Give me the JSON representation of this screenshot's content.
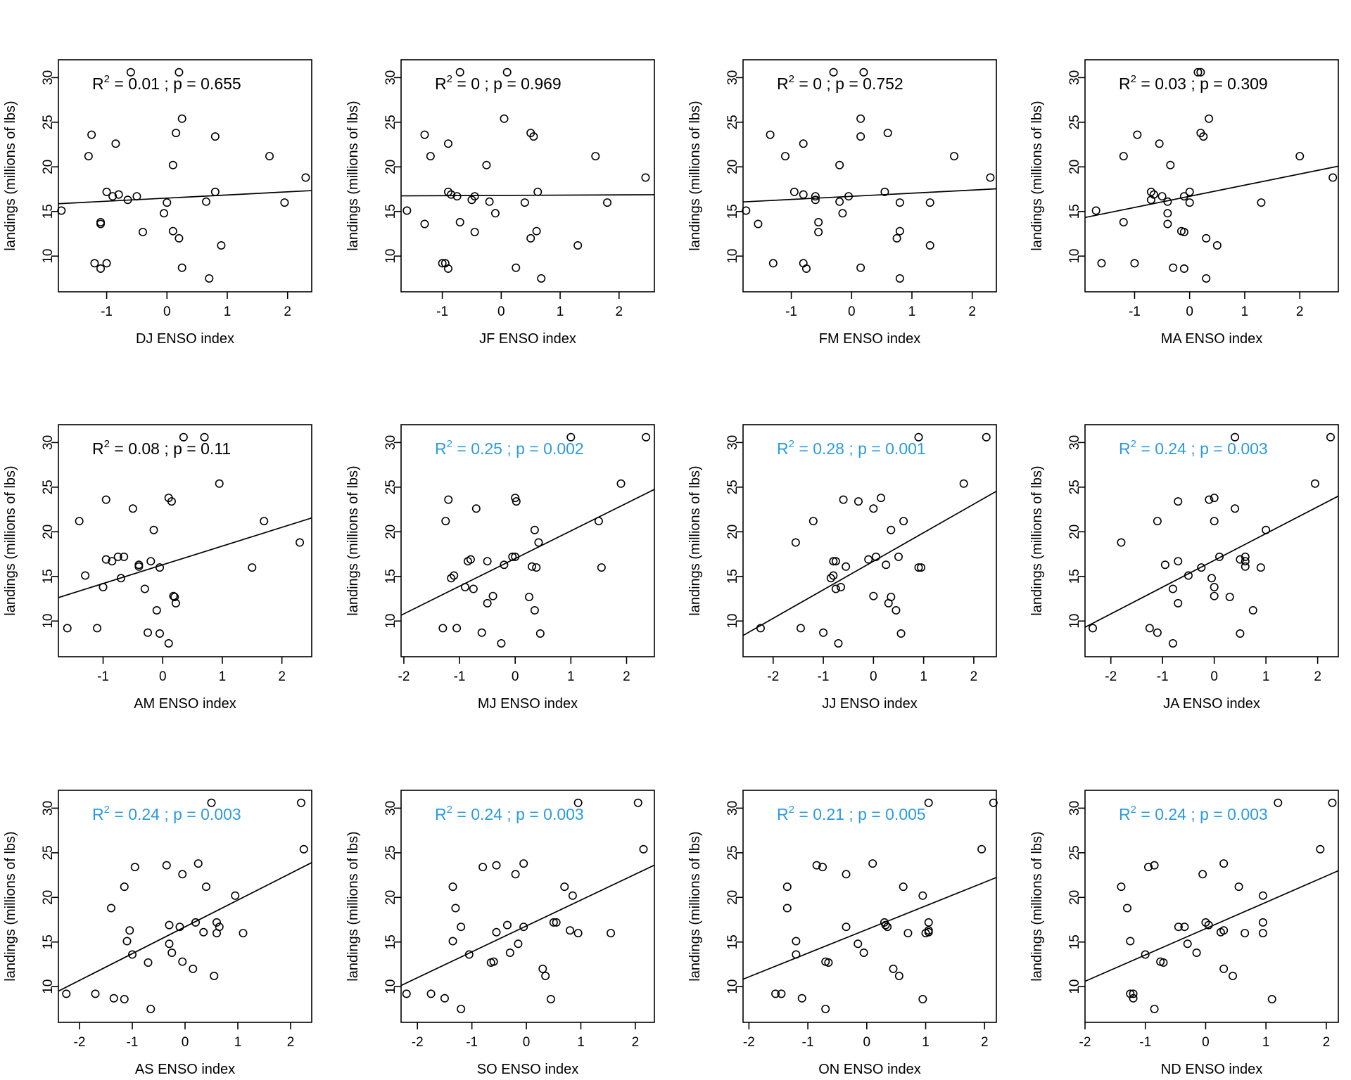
{
  "figure": {
    "ylabel": "landings (millions of lbs)"
  },
  "colors": {
    "significant": "#2b9be0",
    "nonsignificant": "#000000"
  },
  "landings": [
    30.6,
    30.6,
    25.4,
    23.6,
    23.4,
    23.8,
    22.6,
    21.2,
    21.2,
    20.2,
    18.8,
    17.2,
    17.2,
    16.9,
    16.7,
    16.7,
    16.3,
    16.1,
    16.0,
    16.0,
    15.1,
    14.8,
    13.6,
    13.8,
    12.7,
    12.8,
    12.0,
    11.2,
    9.2,
    9.2,
    8.7,
    8.6,
    7.5
  ],
  "chart_data": [
    {
      "type": "scatter",
      "title": "",
      "xlabel": "DJ ENSO index",
      "ylabel": "landings (millions of lbs)",
      "xlim": [
        -1.8,
        2.4
      ],
      "ylim": [
        6,
        32
      ],
      "xticks": [
        -1,
        0,
        1,
        2
      ],
      "yticks": [
        10,
        15,
        20,
        25,
        30
      ],
      "r2": "0.01",
      "p": "0.655",
      "significant": false,
      "fit": [
        16.5,
        0.35
      ],
      "x": [
        -0.6,
        0.2,
        0.25,
        -1.25,
        0.8,
        0.15,
        -0.85,
        -1.3,
        1.7,
        0.1,
        2.3,
        -1.0,
        0.8,
        -0.8,
        -0.9,
        -0.5,
        -0.65,
        0.65,
        0.0,
        1.95,
        -1.75,
        -0.05,
        -1.1,
        -1.1,
        -0.4,
        0.1,
        0.2,
        0.9,
        -1.2,
        -1.0,
        0.25,
        -1.1,
        0.7
      ]
    },
    {
      "type": "scatter",
      "title": "",
      "xlabel": "JF ENSO index",
      "ylabel": "landings (millions of lbs)",
      "xlim": [
        -1.7,
        2.6
      ],
      "ylim": [
        6,
        32
      ],
      "xticks": [
        -1,
        0,
        1,
        2
      ],
      "yticks": [
        10,
        15,
        20,
        25,
        30
      ],
      "r2": "0",
      "p": "0.969",
      "significant": false,
      "fit": [
        16.8,
        0.03
      ],
      "x": [
        -0.7,
        0.1,
        0.05,
        -1.3,
        0.55,
        0.5,
        -0.9,
        -1.2,
        1.6,
        -0.25,
        2.45,
        0.62,
        -0.9,
        -0.85,
        -0.75,
        -0.45,
        -0.5,
        -0.2,
        0.4,
        1.8,
        -1.6,
        -0.1,
        -1.3,
        -0.7,
        -0.45,
        0.6,
        0.5,
        1.3,
        -1.0,
        -0.95,
        0.25,
        -0.9,
        0.68
      ]
    },
    {
      "type": "scatter",
      "title": "",
      "xlabel": "FM ENSO index",
      "ylabel": "landings (millions of lbs)",
      "xlim": [
        -1.8,
        2.4
      ],
      "ylim": [
        6,
        32
      ],
      "xticks": [
        -1,
        0,
        1,
        2
      ],
      "yticks": [
        10,
        15,
        20,
        25,
        30
      ],
      "r2": "0",
      "p": "0.752",
      "significant": false,
      "fit": [
        16.7,
        0.35
      ],
      "x": [
        -0.3,
        0.2,
        0.15,
        -1.35,
        0.15,
        0.6,
        -0.8,
        -1.1,
        1.7,
        -0.2,
        2.3,
        -0.95,
        0.55,
        -0.8,
        -0.6,
        -0.05,
        -0.6,
        -0.2,
        0.8,
        1.3,
        -1.75,
        -0.15,
        -1.55,
        -0.55,
        -0.55,
        0.8,
        0.75,
        1.3,
        -1.3,
        -0.8,
        0.15,
        -0.75,
        0.8
      ]
    },
    {
      "type": "scatter",
      "title": "",
      "xlabel": "MA ENSO index",
      "ylabel": "landings (millions of lbs)",
      "xlim": [
        -1.9,
        2.7
      ],
      "ylim": [
        6,
        32
      ],
      "xticks": [
        -1,
        0,
        1,
        2
      ],
      "yticks": [
        10,
        15,
        20,
        25,
        30
      ],
      "r2": "0.03",
      "p": "0.309",
      "significant": false,
      "fit": [
        16.7,
        1.25
      ],
      "x": [
        0.15,
        0.2,
        0.35,
        -0.95,
        0.25,
        0.2,
        -0.55,
        -1.2,
        2.0,
        -0.35,
        2.6,
        -0.7,
        0.0,
        -0.65,
        -0.1,
        -0.5,
        -0.7,
        -0.4,
        0.0,
        1.3,
        -1.7,
        -0.4,
        -0.4,
        -1.2,
        -0.1,
        -0.15,
        0.3,
        0.5,
        -1.6,
        -1.0,
        -0.3,
        -0.1,
        0.3
      ]
    },
    {
      "type": "scatter",
      "title": "",
      "xlabel": "AM ENSO index",
      "ylabel": "landings (millions of lbs)",
      "xlim": [
        -1.75,
        2.5
      ],
      "ylim": [
        6,
        32
      ],
      "xticks": [
        -1,
        0,
        1,
        2
      ],
      "yticks": [
        10,
        15,
        20,
        25,
        30
      ],
      "r2": "0.08",
      "p": "0.11",
      "significant": false,
      "fit": [
        16.3,
        2.1
      ],
      "x": [
        0.35,
        0.7,
        0.95,
        -0.95,
        0.15,
        0.1,
        -0.5,
        -1.4,
        1.7,
        -0.15,
        2.3,
        -0.75,
        -0.65,
        -0.95,
        -0.85,
        -0.2,
        -0.4,
        -0.4,
        -0.05,
        1.5,
        -1.3,
        -0.7,
        -0.3,
        -1.0,
        0.2,
        0.18,
        0.22,
        -0.1,
        -1.6,
        -1.1,
        -0.25,
        -0.05,
        0.1
      ]
    },
    {
      "type": "scatter",
      "title": "",
      "xlabel": "MJ ENSO index",
      "ylabel": "landings (millions of lbs)",
      "xlim": [
        -2.05,
        2.5
      ],
      "ylim": [
        6,
        32
      ],
      "xticks": [
        -2,
        -1,
        0,
        1,
        2
      ],
      "yticks": [
        10,
        15,
        20,
        25,
        30
      ],
      "r2": "0.25",
      "p": "0.002",
      "significant": true,
      "fit": [
        17.0,
        3.1
      ],
      "x": [
        1.0,
        2.35,
        1.9,
        -1.2,
        0.02,
        0.0,
        -0.7,
        -1.25,
        1.5,
        0.35,
        0.42,
        -0.05,
        0.0,
        -0.8,
        -0.85,
        -0.5,
        -0.2,
        0.3,
        0.38,
        1.55,
        -1.1,
        -1.15,
        -0.75,
        -0.9,
        0.25,
        -0.4,
        -0.5,
        0.35,
        -1.3,
        -1.05,
        -0.6,
        0.45,
        -0.25
      ]
    },
    {
      "type": "scatter",
      "title": "",
      "xlabel": "JJ ENSO index",
      "ylabel": "landings (millions of lbs)",
      "xlim": [
        -2.6,
        2.45
      ],
      "ylim": [
        6,
        32
      ],
      "xticks": [
        -2,
        -1,
        0,
        1,
        2
      ],
      "yticks": [
        10,
        15,
        20,
        25,
        30
      ],
      "r2": "0.28",
      "p": "0.001",
      "significant": true,
      "fit": [
        16.7,
        3.2
      ],
      "x": [
        0.9,
        2.25,
        1.8,
        -0.6,
        -0.3,
        0.15,
        0.0,
        -1.2,
        0.6,
        0.35,
        -1.55,
        0.05,
        0.5,
        -0.1,
        -0.75,
        -0.8,
        0.25,
        -0.55,
        0.95,
        0.9,
        -0.8,
        -0.85,
        -0.75,
        -0.65,
        0.35,
        0.0,
        0.3,
        0.45,
        -2.25,
        -1.45,
        -1.0,
        0.55,
        -0.7
      ]
    },
    {
      "type": "scatter",
      "title": "",
      "xlabel": "JA ENSO index",
      "ylabel": "landings (millions of lbs)",
      "xlim": [
        -2.5,
        2.4
      ],
      "ylim": [
        6,
        32
      ],
      "xticks": [
        -2,
        -1,
        0,
        1,
        2
      ],
      "yticks": [
        10,
        15,
        20,
        25,
        30
      ],
      "r2": "0.24",
      "p": "0.003",
      "significant": true,
      "fit": [
        16.8,
        3.0
      ],
      "x": [
        0.4,
        2.25,
        1.95,
        -0.1,
        -0.7,
        0.0,
        0.4,
        -1.1,
        0.0,
        1.0,
        -1.8,
        0.1,
        0.6,
        0.5,
        -0.7,
        0.6,
        -0.95,
        0.6,
        0.9,
        -0.25,
        -0.5,
        -0.05,
        -0.8,
        0.0,
        0.3,
        0.0,
        -0.7,
        0.75,
        -2.35,
        -1.25,
        -1.1,
        0.5,
        -0.8
      ]
    },
    {
      "type": "scatter",
      "title": "",
      "xlabel": "AS ENSO index",
      "ylabel": "landings (millions of lbs)",
      "xlim": [
        -2.4,
        2.4
      ],
      "ylim": [
        6,
        32
      ],
      "xticks": [
        -2,
        -1,
        0,
        1,
        2
      ],
      "yticks": [
        10,
        15,
        20,
        25,
        30
      ],
      "r2": "0.24",
      "p": "0.003",
      "significant": true,
      "fit": [
        16.7,
        3.0
      ],
      "x": [
        0.5,
        2.2,
        2.25,
        -0.35,
        -0.95,
        0.25,
        -0.05,
        -1.15,
        0.4,
        0.95,
        -1.4,
        0.2,
        0.6,
        -0.3,
        -0.1,
        0.65,
        -1.05,
        0.35,
        0.6,
        1.1,
        -1.1,
        -0.3,
        -1.0,
        -0.25,
        -0.7,
        -0.05,
        0.15,
        0.55,
        -2.25,
        -1.7,
        -1.35,
        -1.15,
        -0.65
      ]
    },
    {
      "type": "scatter",
      "title": "",
      "xlabel": "SO ENSO index",
      "ylabel": "landings (millions of lbs)",
      "xlim": [
        -2.3,
        2.35
      ],
      "ylim": [
        6,
        32
      ],
      "xticks": [
        -2,
        -1,
        0,
        1,
        2
      ],
      "yticks": [
        10,
        15,
        20,
        25,
        30
      ],
      "r2": "0.24",
      "p": "0.003",
      "significant": true,
      "fit": [
        16.8,
        2.9
      ],
      "x": [
        0.95,
        2.05,
        2.15,
        -0.55,
        -0.8,
        -0.05,
        -0.2,
        -1.35,
        0.7,
        0.85,
        -1.3,
        0.55,
        0.5,
        -0.35,
        -0.05,
        -1.2,
        0.8,
        -0.55,
        0.95,
        1.55,
        -1.35,
        -0.15,
        -1.05,
        -0.3,
        -0.65,
        -0.6,
        0.3,
        0.35,
        -2.2,
        -1.75,
        -1.5,
        0.45,
        -1.2
      ]
    },
    {
      "type": "scatter",
      "title": "",
      "xlabel": "ON ENSO index",
      "ylabel": "landings (millions of lbs)",
      "xlim": [
        -2.1,
        2.2
      ],
      "ylim": [
        6,
        32
      ],
      "xticks": [
        -2,
        -1,
        0,
        1,
        2
      ],
      "yticks": [
        10,
        15,
        20,
        25,
        30
      ],
      "r2": "0.21",
      "p": "0.005",
      "significant": true,
      "fit": [
        16.4,
        2.65
      ],
      "x": [
        1.05,
        2.15,
        1.95,
        -0.85,
        -0.75,
        0.1,
        -0.35,
        -1.35,
        0.62,
        0.95,
        -1.35,
        0.3,
        1.05,
        0.32,
        0.35,
        -0.35,
        1.05,
        1.05,
        0.7,
        1.0,
        -1.2,
        -0.15,
        -1.2,
        -0.05,
        -0.65,
        -0.7,
        0.45,
        0.55,
        -1.55,
        -1.45,
        -1.1,
        0.95,
        -0.7
      ]
    },
    {
      "type": "scatter",
      "title": "",
      "xlabel": "ND ENSO index",
      "ylabel": "landings (millions of lbs)",
      "xlim": [
        -2.0,
        2.2
      ],
      "ylim": [
        6,
        32
      ],
      "xticks": [
        -2,
        -1,
        0,
        1,
        2
      ],
      "yticks": [
        10,
        15,
        20,
        25,
        30
      ],
      "r2": "0.24",
      "p": "0.003",
      "significant": true,
      "fit": [
        16.5,
        2.95
      ],
      "x": [
        1.2,
        2.1,
        1.9,
        -0.85,
        -0.95,
        0.3,
        -0.05,
        -1.4,
        0.55,
        0.95,
        -1.3,
        0.0,
        0.95,
        0.05,
        -0.45,
        -0.35,
        0.3,
        0.25,
        0.95,
        0.65,
        -1.25,
        -0.3,
        -1.0,
        -0.15,
        -0.7,
        -0.75,
        0.3,
        0.45,
        -1.2,
        -1.25,
        -1.2,
        1.1,
        -0.85
      ]
    }
  ]
}
